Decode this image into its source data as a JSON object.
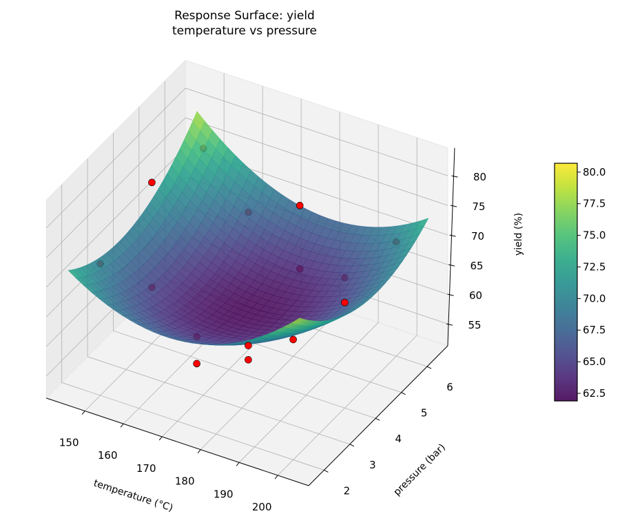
{
  "chart_data": {
    "type": "surface3d",
    "title": "Response Surface: yield",
    "subtitle": "temperature vs pressure",
    "xlabel": "temperature (°C)",
    "ylabel": "pressure (bar)",
    "zlabel": "yield (%)",
    "x_ticks": [
      "150",
      "160",
      "170",
      "180",
      "190",
      "200"
    ],
    "y_ticks": [
      "2",
      "3",
      "4",
      "5",
      "6"
    ],
    "z_ticks": [
      "55",
      "60",
      "65",
      "70",
      "75",
      "80"
    ],
    "xlim": [
      140,
      208
    ],
    "ylim": [
      1.4,
      6.8
    ],
    "zlim": [
      51.3,
      84.7
    ],
    "surface": {
      "x_range": [
        145,
        205
      ],
      "y_range": [
        1.5,
        6.5
      ],
      "model": "62 + 8u^2 + 6v^2 - 2.5uv, u=(T-175)/30, v=(P-4)/2.5",
      "colormap": "viridis",
      "alpha": 0.85
    },
    "points": [
      {
        "x": 150,
        "y": 4,
        "z": 78.5
      },
      {
        "x": 150,
        "y": 6,
        "z": 75.5
      },
      {
        "x": 150,
        "y": 2,
        "z": 73.5
      },
      {
        "x": 150,
        "y": 4,
        "z": 60.8
      },
      {
        "x": 175,
        "y": 4,
        "z": 78.9
      },
      {
        "x": 175,
        "y": 6,
        "z": 71.3
      },
      {
        "x": 175,
        "y": 6,
        "z": 60.6
      },
      {
        "x": 200,
        "y": 4,
        "z": 73.3
      },
      {
        "x": 200,
        "y": 6,
        "z": 70.6
      },
      {
        "x": 200,
        "y": 4,
        "z": 69.1
      },
      {
        "x": 175,
        "y": 2,
        "z": 66.6
      },
      {
        "x": 175,
        "y": 2,
        "z": 62.1
      },
      {
        "x": 175,
        "y": 4,
        "z": 56.4
      },
      {
        "x": 175,
        "y": 4,
        "z": 54.0
      },
      {
        "x": 200,
        "y": 2,
        "z": 71.6
      }
    ],
    "point_color": "#ff0000",
    "colorbar": {
      "range": [
        61.9,
        80.7
      ],
      "ticks": [
        "62.5",
        "65.0",
        "67.5",
        "70.0",
        "72.5",
        "75.0",
        "77.5",
        "80.0"
      ]
    },
    "grid": true,
    "pane_color": "#f2f2f2"
  }
}
